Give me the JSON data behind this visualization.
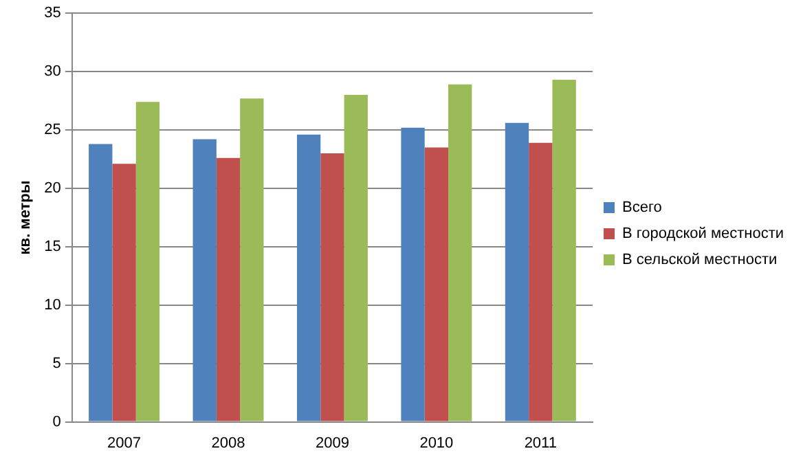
{
  "chart_data": {
    "type": "bar",
    "ylabel": "кв. метры",
    "categories": [
      "2007",
      "2008",
      "2009",
      "2010",
      "2011"
    ],
    "series": [
      {
        "name": "Всего",
        "color": "#4f81bd",
        "values": [
          23.8,
          24.2,
          24.6,
          25.2,
          25.6
        ]
      },
      {
        "name": "В городской местности",
        "color": "#c0504d",
        "values": [
          22.1,
          22.6,
          23.0,
          23.5,
          23.9
        ]
      },
      {
        "name": "В сельской местности",
        "color": "#9bbb59",
        "values": [
          27.4,
          27.7,
          28.0,
          28.9,
          29.3
        ]
      }
    ],
    "ylim": [
      0,
      35
    ],
    "yticks": [
      0,
      5,
      10,
      15,
      20,
      25,
      30,
      35
    ],
    "grid": "y",
    "legend": "right"
  }
}
